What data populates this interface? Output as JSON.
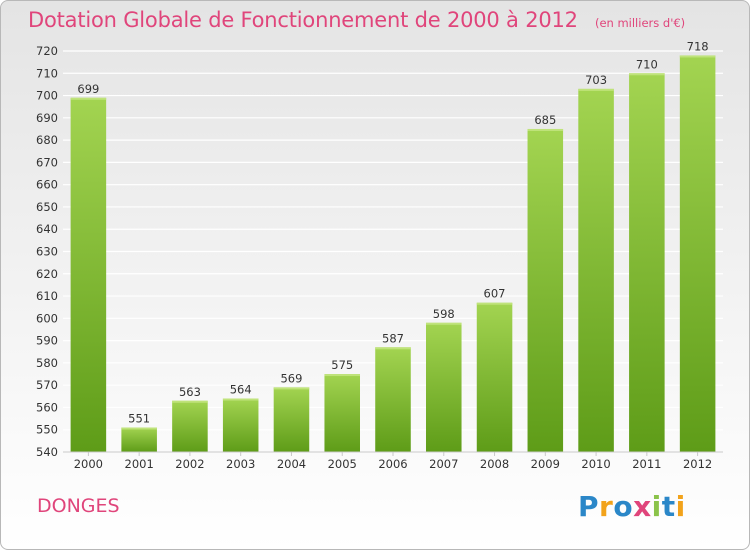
{
  "header": {
    "title": "Dotation Globale de Fonctionnement de 2000 à 2012",
    "unit": "(en milliers d'€)"
  },
  "footer": {
    "commune": "DONGES",
    "logo_text": "Proxiti"
  },
  "colors": {
    "title": "#e0457b",
    "bar_light": "#9fd04a",
    "bar_dark": "#5f9e1a",
    "grid": "#ffffff",
    "axis_text": "#333333"
  },
  "chart_data": {
    "type": "bar",
    "title": "Dotation Globale de Fonctionnement de 2000 à 2012",
    "subtitle": "(en milliers d'€)",
    "categories": [
      "2000",
      "2001",
      "2002",
      "2003",
      "2004",
      "2005",
      "2006",
      "2007",
      "2008",
      "2009",
      "2010",
      "2011",
      "2012"
    ],
    "values": [
      699,
      551,
      563,
      564,
      569,
      575,
      587,
      598,
      607,
      685,
      703,
      710,
      718
    ],
    "ylim": [
      540,
      720
    ],
    "yticks": [
      540,
      550,
      560,
      570,
      580,
      590,
      600,
      610,
      620,
      630,
      640,
      650,
      660,
      670,
      680,
      690,
      700,
      710,
      720
    ],
    "grid": true,
    "legend": "none"
  }
}
